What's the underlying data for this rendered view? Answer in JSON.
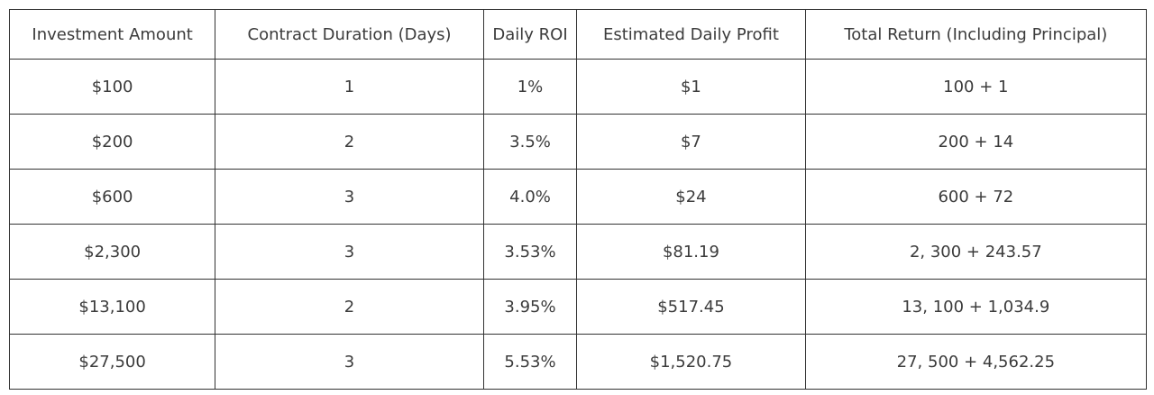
{
  "colors": {
    "border": "#333333",
    "text": "#3b3b3b",
    "background": "#ffffff"
  },
  "chart_data": {
    "type": "table",
    "columns": [
      "Investment Amount",
      "Contract Duration (Days)",
      "Daily ROI",
      "Estimated Daily Profit",
      "Total Return (Including Principal)"
    ],
    "rows": [
      [
        "$100",
        "1",
        "1%",
        "$1",
        "100 + 1"
      ],
      [
        "$200",
        "2",
        "3.5%",
        "$7",
        "200 + 14"
      ],
      [
        "$600",
        "3",
        "4.0%",
        "$24",
        "600 + 72"
      ],
      [
        "$2,300",
        "3",
        "3.53%",
        "$81.19",
        "2, 300 + 243.57"
      ],
      [
        "$13,100",
        "2",
        "3.95%",
        "$517.45",
        "13, 100 + 1,034.9"
      ],
      [
        "$27,500",
        "3",
        "5.53%",
        "$1,520.75",
        "27, 500 + 4,562.25"
      ]
    ]
  }
}
